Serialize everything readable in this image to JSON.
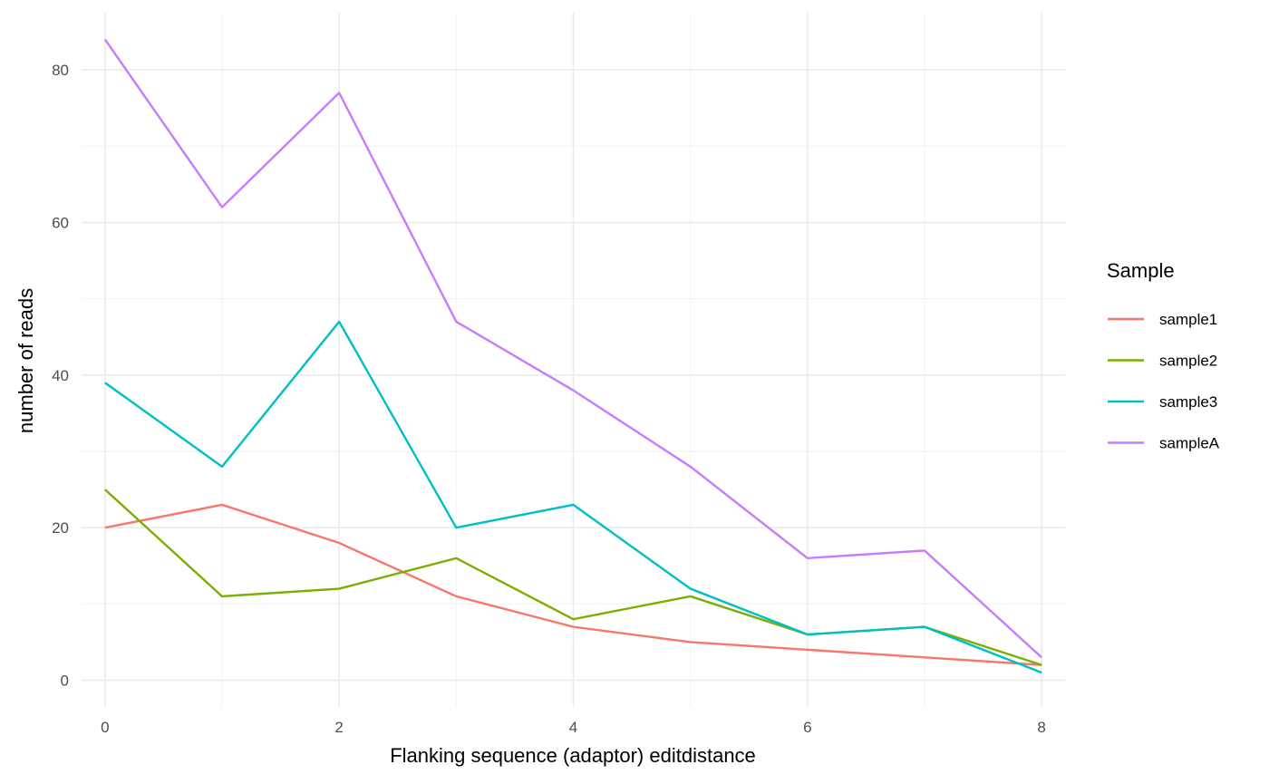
{
  "chart_data": {
    "type": "line",
    "xlabel": "Flanking sequence (adaptor) editdistance",
    "ylabel": "number of reads",
    "xlim": [
      -0.2,
      8.2
    ],
    "ylim": [
      -3.5,
      87.5
    ],
    "x_ticks": [
      0,
      2,
      4,
      6,
      8
    ],
    "x_minor": [
      1,
      3,
      5,
      7
    ],
    "y_ticks": [
      0,
      20,
      40,
      60,
      80
    ],
    "y_minor": [
      10,
      30,
      50,
      70
    ],
    "grid": true,
    "legend": {
      "title": "Sample",
      "position": "right"
    },
    "x": [
      0,
      1,
      2,
      3,
      4,
      5,
      6,
      7,
      8
    ],
    "series": [
      {
        "name": "sample1",
        "color": "#F8766D",
        "values": [
          20,
          23,
          18,
          11,
          7,
          5,
          4,
          3,
          2
        ]
      },
      {
        "name": "sample2",
        "color": "#7CAE00",
        "values": [
          25,
          11,
          12,
          16,
          8,
          11,
          6,
          7,
          2
        ]
      },
      {
        "name": "sample3",
        "color": "#00BFC4",
        "values": [
          39,
          28,
          47,
          20,
          23,
          12,
          6,
          7,
          1
        ]
      },
      {
        "name": "sampleA",
        "color": "#C77CFF",
        "values": [
          84,
          62,
          77,
          47,
          38,
          28,
          16,
          17,
          3
        ]
      }
    ]
  }
}
